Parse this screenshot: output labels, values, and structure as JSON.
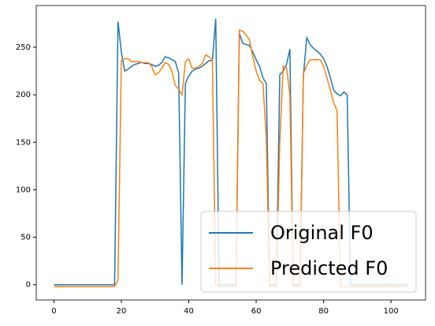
{
  "chart_data": {
    "type": "line",
    "x": [
      0,
      1,
      2,
      3,
      4,
      5,
      6,
      7,
      8,
      9,
      10,
      11,
      12,
      13,
      14,
      15,
      16,
      17,
      18,
      19,
      20,
      21,
      22,
      23,
      24,
      25,
      26,
      27,
      28,
      29,
      30,
      31,
      32,
      33,
      34,
      35,
      36,
      37,
      38,
      39,
      40,
      41,
      42,
      43,
      44,
      45,
      46,
      47,
      48,
      49,
      50,
      51,
      52,
      53,
      54,
      55,
      56,
      57,
      58,
      59,
      60,
      61,
      62,
      63,
      64,
      65,
      66,
      67,
      68,
      69,
      70,
      71,
      72,
      73,
      74,
      75,
      76,
      77,
      78,
      79,
      80,
      81,
      82,
      83,
      84,
      85,
      86,
      87,
      88,
      89,
      90,
      91,
      92,
      93,
      94,
      95,
      96,
      97,
      98,
      99,
      100,
      101,
      102,
      103,
      104,
      105
    ],
    "series": [
      {
        "name": "Original F0",
        "color": "#1f77b4",
        "values": [
          0,
          0,
          0,
          0,
          0,
          0,
          0,
          0,
          0,
          0,
          0,
          0,
          0,
          0,
          0,
          0,
          0,
          0,
          0,
          277,
          245,
          225,
          227,
          230,
          232,
          233,
          234,
          233,
          233,
          232,
          230,
          231,
          234,
          240,
          239,
          237,
          235,
          223,
          0,
          212,
          220,
          225,
          227,
          228,
          230,
          233,
          236,
          236,
          280,
          0,
          0,
          0,
          0,
          0,
          0,
          265,
          254,
          253,
          252,
          245,
          237,
          230,
          218,
          212,
          0,
          0,
          0,
          221,
          225,
          232,
          248,
          0,
          0,
          0,
          220,
          260,
          253,
          249,
          246,
          243,
          238,
          230,
          218,
          205,
          201,
          199,
          203,
          200,
          0,
          0,
          0,
          0,
          0,
          0,
          0,
          0,
          0,
          0,
          0,
          0,
          0,
          0,
          0,
          0,
          0,
          0
        ]
      },
      {
        "name": "Predicted F0",
        "color": "#ff7f0e",
        "values": [
          -2,
          -2,
          -2,
          -2,
          -2,
          -2,
          -2,
          -2,
          -2,
          -2,
          -2,
          -2,
          -2,
          -2,
          -2,
          -2,
          -2,
          -2,
          -2,
          5,
          236,
          238,
          238,
          235,
          235,
          235,
          234,
          234,
          234,
          230,
          221,
          223,
          228,
          234,
          232,
          225,
          210,
          206,
          200,
          235,
          238,
          228,
          228,
          230,
          233,
          242,
          240,
          237,
          0,
          -2,
          -2,
          -2,
          -2,
          -2,
          -2,
          268,
          267,
          263,
          258,
          240,
          225,
          215,
          212,
          155,
          -2,
          -2,
          -2,
          150,
          230,
          229,
          200,
          -2,
          -2,
          -2,
          222,
          231,
          237,
          237,
          237,
          237,
          230,
          218,
          205,
          192,
          183,
          -2,
          -2,
          -2,
          -2,
          -2,
          -2,
          -2,
          -2,
          -2,
          -2,
          -2,
          -2,
          -2,
          -2,
          -2,
          -2,
          -2,
          -2,
          -2,
          -2,
          -2
        ]
      }
    ],
    "xlim": [
      -5.25,
      110.25
    ],
    "ylim": [
      -16,
      294
    ],
    "xticks": [
      0,
      20,
      40,
      60,
      80,
      100
    ],
    "yticks": [
      0,
      50,
      100,
      150,
      200,
      250
    ],
    "legend": "lower right"
  }
}
